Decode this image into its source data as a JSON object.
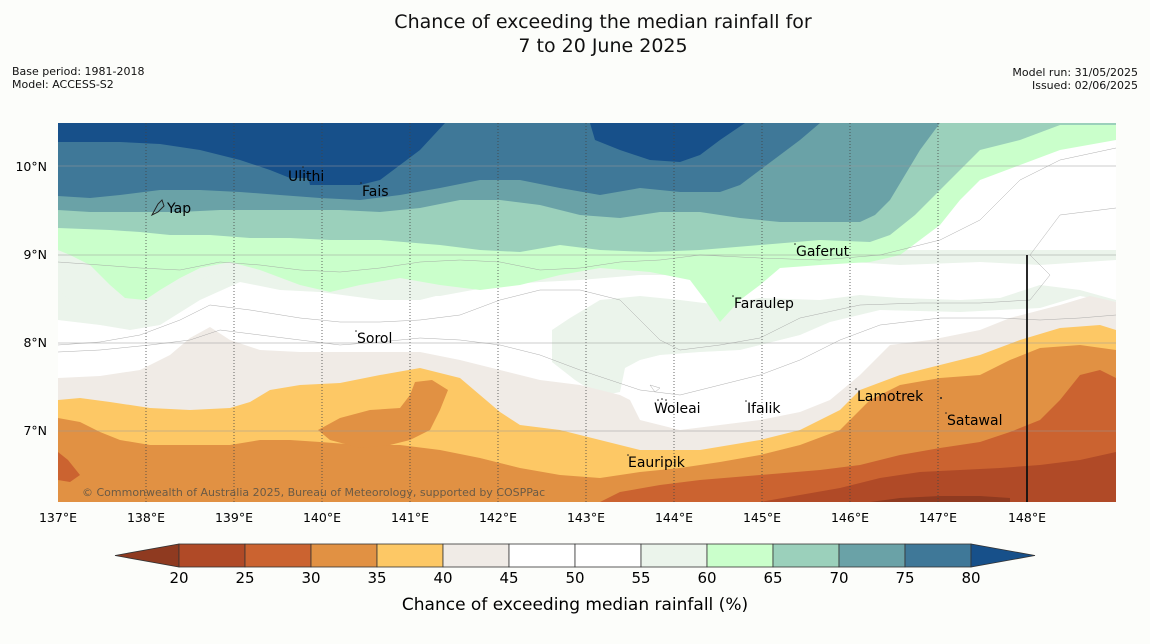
{
  "title_line1": "Chance of exceeding the median rainfall for",
  "title_line2": "7 to 20 June 2025",
  "base_period": "Base period: 1981-2018",
  "model": "Model: ACCESS-S2",
  "model_run": "Model run: 31/05/2025",
  "issued": "Issued: 02/06/2025",
  "copyright": "© Commonwealth of Australia 2025, Bureau of Meteorology, supported by COSPPac",
  "lon_ticks": [
    "137°E",
    "138°E",
    "139°E",
    "140°E",
    "141°E",
    "142°E",
    "143°E",
    "144°E",
    "145°E",
    "146°E",
    "147°E",
    "148°E"
  ],
  "lat_ticks": [
    "10°N",
    "9°N",
    "8°N",
    "7°N"
  ],
  "places": {
    "yap": "Yap",
    "ulithi": "Ulithi",
    "fais": "Fais",
    "gaferut": "Gaferut",
    "faraulep": "Faraulep",
    "sorol": "Sorol",
    "lamotrek": "Lamotrek",
    "woleai": "Woleai",
    "ifalik": "Ifalik",
    "satawal": "Satawal",
    "eauripik": "Eauripik"
  },
  "colorbar": {
    "label": "Chance of exceeding median rainfall (%)",
    "ticks": [
      "20",
      "25",
      "30",
      "35",
      "40",
      "45",
      "50",
      "55",
      "60",
      "65",
      "70",
      "75",
      "80"
    ],
    "colors": [
      "#8f3a20",
      "#b04a27",
      "#cb6330",
      "#e19143",
      "#fdc865",
      "#f0ebe6",
      "#ffffff",
      "#ffffff",
      "#ebf4eb",
      "#caffcb",
      "#9bd0bb",
      "#6aa2a7",
      "#3f7898",
      "#17508a"
    ]
  }
}
